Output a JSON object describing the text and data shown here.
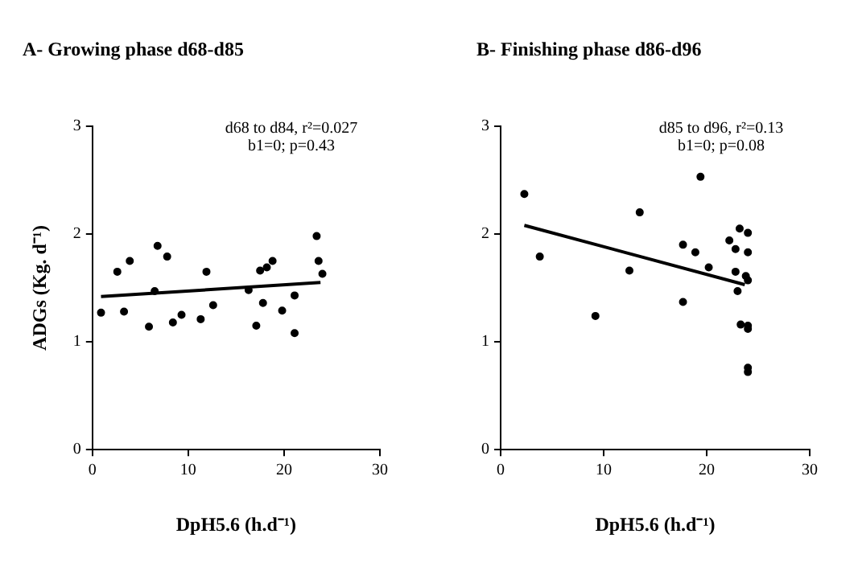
{
  "chart_data": [
    {
      "type": "scatter",
      "title": "A- Growing phase d68-d85",
      "xlabel": "DpH5.6 (h.d⁻¹)",
      "ylabel": "ADGs (Kg. d⁻¹)",
      "annotations": [
        "d68 to d84, r²=0.027",
        "b1=0; p=0.43"
      ],
      "xlim": [
        0,
        30
      ],
      "xticks": [
        0,
        10,
        20,
        30
      ],
      "ylim": [
        0,
        3
      ],
      "yticks": [
        0,
        1,
        2,
        3
      ],
      "grid": false,
      "legend": false,
      "series": [
        {
          "marker": "circle",
          "color": "#000000",
          "x": [
            0.9,
            2.6,
            3.3,
            3.9,
            5.9,
            6.5,
            6.8,
            7.8,
            8.4,
            9.3,
            11.3,
            11.9,
            12.6,
            16.3,
            17.1,
            17.5,
            17.8,
            18.2,
            18.8,
            19.8,
            21.1,
            21.1,
            23.4,
            23.6,
            24.0
          ],
          "values": [
            1.27,
            1.65,
            1.28,
            1.75,
            1.14,
            1.47,
            1.89,
            1.79,
            1.18,
            1.25,
            1.21,
            1.65,
            1.34,
            1.48,
            1.15,
            1.66,
            1.36,
            1.69,
            1.75,
            1.29,
            1.43,
            1.08,
            1.98,
            1.75,
            1.63
          ]
        },
        {
          "type": "line",
          "marker": "none",
          "color": "#000000",
          "x": [
            0.9,
            23.8
          ],
          "values": [
            1.42,
            1.55
          ]
        }
      ]
    },
    {
      "type": "scatter",
      "title": "B- Finishing phase d86-d96",
      "xlabel": "DpH5.6 (h.d⁻¹)",
      "annotations": [
        "d85 to d96, r²=0.13",
        "b1=0; p=0.08"
      ],
      "xlim": [
        0,
        30
      ],
      "xticks": [
        0,
        10,
        20,
        30
      ],
      "ylim": [
        0,
        3
      ],
      "yticks": [
        0,
        1,
        2,
        3
      ],
      "grid": false,
      "legend": false,
      "series": [
        {
          "marker": "circle",
          "color": "#000000",
          "x": [
            2.3,
            3.8,
            9.2,
            12.5,
            13.5,
            17.7,
            17.7,
            18.9,
            19.4,
            20.2,
            22.2,
            22.8,
            22.8,
            23.0,
            23.2,
            23.3,
            23.8,
            24.0,
            24.0,
            24.0,
            24.0,
            24.0,
            24.0,
            24.0
          ],
          "values": [
            2.37,
            1.79,
            1.24,
            1.66,
            2.2,
            1.9,
            1.37,
            1.83,
            2.53,
            1.69,
            1.94,
            1.86,
            1.65,
            1.47,
            2.05,
            1.16,
            1.61,
            2.01,
            1.83,
            1.57,
            1.15,
            1.12,
            0.76,
            0.72
          ]
        },
        {
          "type": "line",
          "marker": "none",
          "color": "#000000",
          "x": [
            2.3,
            23.7
          ],
          "values": [
            2.08,
            1.53
          ]
        }
      ]
    }
  ]
}
